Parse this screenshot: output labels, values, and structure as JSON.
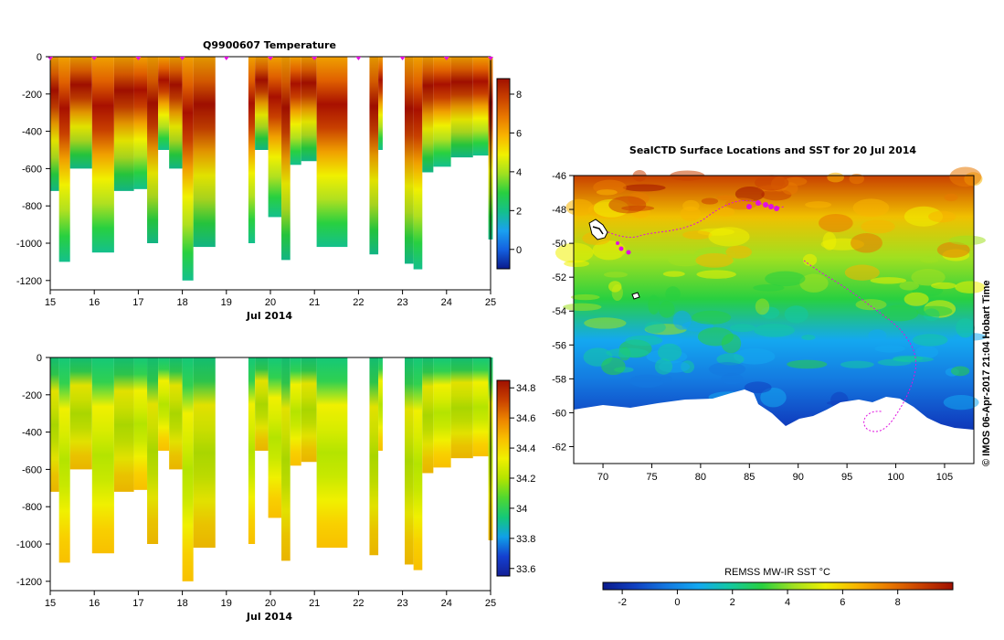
{
  "colors": {
    "temp_scale": [
      "#0a1a8c",
      "#1460e0",
      "#1aa0f0",
      "#14c08c",
      "#28d040",
      "#a0e020",
      "#f0f000",
      "#f8b400",
      "#e87800",
      "#c84000",
      "#a01000"
    ],
    "sal_scale": [
      "#142096",
      "#1440d0",
      "#10a0e8",
      "#14c878",
      "#50d830",
      "#b4e400",
      "#f0f000",
      "#f8c000",
      "#ec8400",
      "#c84000",
      "#a01000"
    ],
    "sst_scale": [
      "#0a1a8c",
      "#1040c0",
      "#1478e0",
      "#14a8f0",
      "#14c8a0",
      "#28d040",
      "#a0e020",
      "#f0f000",
      "#f8b400",
      "#e87800",
      "#c84000",
      "#a01000"
    ],
    "track": "#e010e0"
  },
  "chart_data": [
    {
      "type": "heatmap",
      "title": "Q9900607  Temperature",
      "xlabel": "Jul 2014",
      "x_ticks": [
        "15",
        "16",
        "17",
        "18",
        "19",
        "20",
        "21",
        "22",
        "23",
        "24",
        "25"
      ],
      "xlim": [
        15,
        25
      ],
      "y_ticks": [
        "0",
        "-200",
        "-400",
        "-600",
        "-800",
        "-1000",
        "-1200"
      ],
      "ylim": [
        -1250,
        0
      ],
      "colorbar_ticks": [
        "0",
        "2",
        "4",
        "6",
        "8"
      ],
      "colorbar_range": [
        -1,
        8.8
      ],
      "profiles": [
        {
          "x0": 15.0,
          "x1": 15.2,
          "depth": 720
        },
        {
          "x0": 15.2,
          "x1": 15.45,
          "depth": 1100
        },
        {
          "x0": 15.45,
          "x1": 15.95,
          "depth": 600
        },
        {
          "x0": 15.95,
          "x1": 16.45,
          "depth": 1050
        },
        {
          "x0": 16.45,
          "x1": 16.9,
          "depth": 720
        },
        {
          "x0": 16.9,
          "x1": 17.2,
          "depth": 710
        },
        {
          "x0": 17.2,
          "x1": 17.45,
          "depth": 1000
        },
        {
          "x0": 17.45,
          "x1": 17.7,
          "depth": 500
        },
        {
          "x0": 17.7,
          "x1": 18.0,
          "depth": 600
        },
        {
          "x0": 18.0,
          "x1": 18.25,
          "depth": 1200
        },
        {
          "x0": 18.25,
          "x1": 18.75,
          "depth": 1020
        },
        {
          "x0": 19.5,
          "x1": 19.65,
          "depth": 1000
        },
        {
          "x0": 19.65,
          "x1": 19.95,
          "depth": 500
        },
        {
          "x0": 19.95,
          "x1": 20.25,
          "depth": 860
        },
        {
          "x0": 20.25,
          "x1": 20.45,
          "depth": 1090
        },
        {
          "x0": 20.45,
          "x1": 20.7,
          "depth": 580
        },
        {
          "x0": 20.7,
          "x1": 21.05,
          "depth": 560
        },
        {
          "x0": 21.05,
          "x1": 21.75,
          "depth": 1020
        },
        {
          "x0": 22.25,
          "x1": 22.45,
          "depth": 1060
        },
        {
          "x0": 22.45,
          "x1": 22.55,
          "depth": 500
        },
        {
          "x0": 23.05,
          "x1": 23.25,
          "depth": 1110
        },
        {
          "x0": 23.25,
          "x1": 23.45,
          "depth": 1140
        },
        {
          "x0": 23.45,
          "x1": 23.7,
          "depth": 620
        },
        {
          "x0": 23.7,
          "x1": 24.1,
          "depth": 590
        },
        {
          "x0": 24.1,
          "x1": 24.6,
          "depth": 540
        },
        {
          "x0": 24.6,
          "x1": 24.95,
          "depth": 530
        },
        {
          "x0": 24.95,
          "x1": 25.05,
          "depth": 980
        }
      ]
    },
    {
      "type": "heatmap",
      "title": "",
      "xlabel": "Jul 2014",
      "x_ticks": [
        "15",
        "16",
        "17",
        "18",
        "19",
        "20",
        "21",
        "22",
        "23",
        "24",
        "25"
      ],
      "xlim": [
        15,
        25
      ],
      "y_ticks": [
        "0",
        "-200",
        "-400",
        "-600",
        "-800",
        "-1000",
        "-1200"
      ],
      "ylim": [
        -1250,
        0
      ],
      "colorbar_ticks": [
        "33.6",
        "33.8",
        "34",
        "34.2",
        "34.4",
        "34.6",
        "34.8"
      ],
      "colorbar_range": [
        33.55,
        34.85
      ]
    },
    {
      "type": "heatmap",
      "title": "SealCTD Surface Locations and SST for 20 Jul 2014",
      "x_ticks": [
        "70",
        "75",
        "80",
        "85",
        "90",
        "95",
        "100",
        "105"
      ],
      "xlim": [
        67,
        108
      ],
      "y_ticks": [
        "-46",
        "-48",
        "-50",
        "-52",
        "-54",
        "-56",
        "-58",
        "-60",
        "-62"
      ],
      "ylim": [
        -63,
        -46
      ],
      "colorbar_label": "REMSS MW-IR SST °C",
      "colorbar_ticks": [
        "-2",
        "0",
        "2",
        "4",
        "6",
        "8"
      ],
      "colorbar_range": [
        -2.7,
        10
      ],
      "side_label": "© IMOS 06-Apr-2017 21:04 Hobart Time"
    }
  ]
}
